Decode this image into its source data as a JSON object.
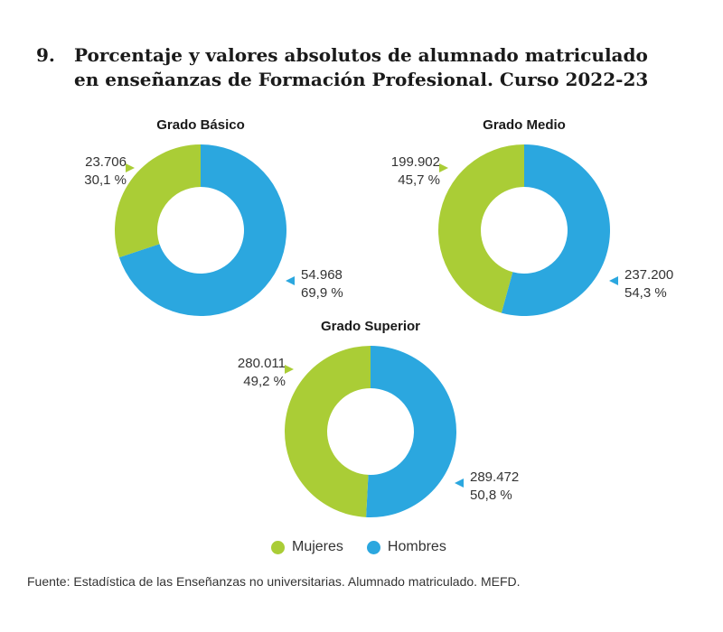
{
  "title": {
    "number": "9.",
    "line1": "Porcentaje y valores absolutos de alumnado matriculado",
    "line2": "en enseñanzas de Formación Profesional. Curso 2022-23"
  },
  "colors": {
    "mujeres": "#aacd36",
    "hombres": "#2ba7df",
    "marker_mujeres": "#aacd36",
    "marker_hombres": "#2ba7df"
  },
  "chart_data": [
    {
      "type": "pie",
      "title": "Grado Básico",
      "categories": [
        "Mujeres",
        "Hombres"
      ],
      "values": [
        23706,
        54968
      ],
      "value_labels": [
        "23.706",
        "54.968"
      ],
      "percent_labels": [
        "30,1 %",
        "69,9 %"
      ]
    },
    {
      "type": "pie",
      "title": "Grado Medio",
      "categories": [
        "Mujeres",
        "Hombres"
      ],
      "values": [
        199902,
        237200
      ],
      "value_labels": [
        "199.902",
        "237.200"
      ],
      "percent_labels": [
        "45,7 %",
        "54,3 %"
      ]
    },
    {
      "type": "pie",
      "title": "Grado Superior",
      "categories": [
        "Mujeres",
        "Hombres"
      ],
      "values": [
        280011,
        289472
      ],
      "value_labels": [
        "280.011",
        "289.472"
      ],
      "percent_labels": [
        "49,2 %",
        "50,8 %"
      ]
    }
  ],
  "legend": {
    "items": [
      {
        "label": "Mujeres",
        "color": "#aacd36"
      },
      {
        "label": "Hombres",
        "color": "#2ba7df"
      }
    ]
  },
  "source": "Fuente: Estadística de las Enseñanzas no universitarias. Alumnado matriculado. MEFD."
}
